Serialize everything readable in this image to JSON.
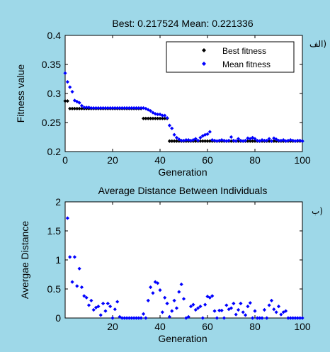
{
  "figure": {
    "side_label_top": "الف)",
    "side_label_bottom": "ب)"
  },
  "chart_data": [
    {
      "type": "scatter",
      "title": "Best: 0.217524 Mean: 0.221336",
      "xlabel": "Generation",
      "ylabel": "Fitness value",
      "xlim": [
        0,
        100
      ],
      "ylim": [
        0.2,
        0.4
      ],
      "xticks": [
        "0",
        "20",
        "40",
        "60",
        "80",
        "100"
      ],
      "yticks": [
        "0.2",
        "0.25",
        "0.3",
        "0.35",
        "0.4"
      ],
      "legend_position": "top-right",
      "series": [
        {
          "name": "Best fitness",
          "color": "#000000",
          "marker": "diamond",
          "x": [
            0,
            1,
            2,
            3,
            4,
            5,
            6,
            7,
            8,
            9,
            10,
            11,
            12,
            13,
            14,
            15,
            16,
            17,
            18,
            19,
            20,
            21,
            22,
            23,
            24,
            25,
            26,
            27,
            28,
            29,
            30,
            31,
            32,
            33,
            34,
            35,
            36,
            37,
            38,
            39,
            40,
            41,
            42,
            43,
            44,
            45,
            46,
            47,
            48,
            49,
            50,
            51,
            52,
            53,
            54,
            55,
            56,
            57,
            58,
            59,
            60,
            61,
            62,
            63,
            64,
            65,
            66,
            67,
            68,
            69,
            70,
            71,
            72,
            73,
            74,
            75,
            76,
            77,
            78,
            79,
            80,
            81,
            82,
            83,
            84,
            85,
            86,
            87,
            88,
            89,
            90,
            91,
            92,
            93,
            94,
            95,
            96,
            97,
            98,
            99,
            100
          ],
          "y": [
            0.287,
            0.287,
            0.274,
            0.274,
            0.274,
            0.274,
            0.274,
            0.274,
            0.274,
            0.274,
            0.274,
            0.274,
            0.274,
            0.274,
            0.274,
            0.274,
            0.274,
            0.274,
            0.274,
            0.274,
            0.274,
            0.274,
            0.274,
            0.274,
            0.274,
            0.274,
            0.274,
            0.274,
            0.274,
            0.274,
            0.274,
            0.274,
            0.274,
            0.257,
            0.257,
            0.257,
            0.257,
            0.257,
            0.257,
            0.257,
            0.257,
            0.257,
            0.257,
            0.257,
            0.218,
            0.218,
            0.218,
            0.218,
            0.218,
            0.218,
            0.218,
            0.218,
            0.218,
            0.218,
            0.218,
            0.218,
            0.218,
            0.218,
            0.218,
            0.218,
            0.218,
            0.218,
            0.218,
            0.218,
            0.218,
            0.218,
            0.218,
            0.218,
            0.218,
            0.218,
            0.218,
            0.218,
            0.218,
            0.218,
            0.218,
            0.218,
            0.218,
            0.218,
            0.218,
            0.218,
            0.218,
            0.218,
            0.218,
            0.218,
            0.218,
            0.218,
            0.218,
            0.218,
            0.218,
            0.218,
            0.218,
            0.218,
            0.218,
            0.218,
            0.218,
            0.218,
            0.218,
            0.218,
            0.218,
            0.218,
            0.218
          ]
        },
        {
          "name": "Mean fitness",
          "color": "#0000ff",
          "marker": "diamond",
          "x": [
            0,
            1,
            2,
            3,
            4,
            5,
            6,
            7,
            8,
            9,
            10,
            11,
            12,
            13,
            14,
            15,
            16,
            17,
            18,
            19,
            20,
            21,
            22,
            23,
            24,
            25,
            26,
            27,
            28,
            29,
            30,
            31,
            32,
            33,
            34,
            35,
            36,
            37,
            38,
            39,
            40,
            41,
            42,
            43,
            44,
            45,
            46,
            47,
            48,
            49,
            50,
            51,
            52,
            53,
            54,
            55,
            56,
            57,
            58,
            59,
            60,
            61,
            62,
            63,
            64,
            65,
            66,
            67,
            68,
            69,
            70,
            71,
            72,
            73,
            74,
            75,
            76,
            77,
            78,
            79,
            80,
            81,
            82,
            83,
            84,
            85,
            86,
            87,
            88,
            89,
            90,
            91,
            92,
            93,
            94,
            95,
            96,
            97,
            98,
            99,
            100
          ],
          "y": [
            0.335,
            0.32,
            0.311,
            0.303,
            0.288,
            0.286,
            0.284,
            0.279,
            0.276,
            0.276,
            0.276,
            0.275,
            0.275,
            0.275,
            0.275,
            0.275,
            0.275,
            0.275,
            0.275,
            0.275,
            0.275,
            0.275,
            0.275,
            0.275,
            0.275,
            0.275,
            0.275,
            0.275,
            0.275,
            0.275,
            0.275,
            0.275,
            0.275,
            0.275,
            0.274,
            0.272,
            0.27,
            0.267,
            0.265,
            0.264,
            0.264,
            0.262,
            0.262,
            0.258,
            0.245,
            0.24,
            0.229,
            0.224,
            0.221,
            0.219,
            0.219,
            0.22,
            0.22,
            0.219,
            0.22,
            0.222,
            0.219,
            0.224,
            0.227,
            0.229,
            0.23,
            0.234,
            0.22,
            0.219,
            0.218,
            0.219,
            0.22,
            0.219,
            0.218,
            0.219,
            0.225,
            0.219,
            0.218,
            0.222,
            0.219,
            0.218,
            0.219,
            0.223,
            0.222,
            0.224,
            0.222,
            0.219,
            0.218,
            0.22,
            0.219,
            0.219,
            0.222,
            0.218,
            0.223,
            0.221,
            0.219,
            0.219,
            0.22,
            0.218,
            0.219,
            0.22,
            0.219,
            0.218,
            0.219,
            0.219,
            0.218
          ]
        }
      ]
    },
    {
      "type": "scatter",
      "title": "Average Distance Between Individuals",
      "xlabel": "Generation",
      "ylabel": "Avergae Distance",
      "xlim": [
        0,
        100
      ],
      "ylim": [
        0,
        2
      ],
      "xticks": [
        "20",
        "40",
        "60",
        "80",
        "100"
      ],
      "yticks": [
        "0",
        "0.5",
        "1",
        "1.5",
        "2"
      ],
      "series": [
        {
          "color": "#0000ff",
          "marker": "diamond",
          "x": [
            1,
            2,
            3,
            4,
            5,
            6,
            7,
            8,
            9,
            10,
            11,
            12,
            13,
            14,
            15,
            16,
            17,
            18,
            19,
            20,
            21,
            22,
            23,
            24,
            25,
            26,
            27,
            28,
            29,
            30,
            31,
            32,
            33,
            34,
            35,
            36,
            37,
            38,
            39,
            40,
            41,
            42,
            43,
            44,
            45,
            46,
            47,
            48,
            49,
            50,
            51,
            52,
            53,
            54,
            55,
            56,
            57,
            58,
            59,
            60,
            61,
            62,
            63,
            64,
            65,
            66,
            67,
            68,
            69,
            70,
            71,
            72,
            73,
            74,
            75,
            76,
            77,
            78,
            79,
            80,
            81,
            82,
            83,
            84,
            85,
            86,
            87,
            88,
            89,
            90,
            91,
            92,
            93,
            94,
            95,
            96,
            97,
            98,
            99,
            100
          ],
          "y": [
            1.72,
            1.05,
            0.62,
            1.05,
            0.55,
            0.85,
            0.53,
            0.38,
            0.35,
            0.22,
            0.3,
            0.14,
            0.18,
            0.2,
            0.05,
            0.25,
            0.12,
            0.25,
            0.2,
            0.0,
            0.15,
            0.28,
            0.02,
            0.0,
            0.0,
            0.0,
            0.0,
            0.0,
            0.0,
            0.0,
            0.0,
            0.0,
            0.07,
            0.0,
            0.3,
            0.53,
            0.43,
            0.62,
            0.6,
            0.48,
            0.1,
            0.35,
            0.25,
            0.02,
            0.12,
            0.3,
            0.17,
            0.45,
            0.58,
            0.33,
            0.0,
            0.02,
            0.2,
            0.23,
            0.14,
            0.17,
            0.2,
            0.0,
            0.23,
            0.37,
            0.35,
            0.38,
            0.12,
            0.0,
            0.13,
            0.13,
            0.0,
            0.22,
            0.15,
            0.17,
            0.25,
            0.06,
            0.14,
            0.25,
            0.1,
            0.05,
            0.2,
            0.26,
            0.0,
            0.12,
            0.0,
            0.0,
            0.0,
            0.14,
            0.0,
            0.22,
            0.3,
            0.15,
            0.1,
            0.2,
            0.06,
            0.1,
            0.12,
            0.0,
            0.0,
            0.0,
            0.0,
            0.0,
            0.0,
            0.0
          ]
        }
      ]
    }
  ]
}
